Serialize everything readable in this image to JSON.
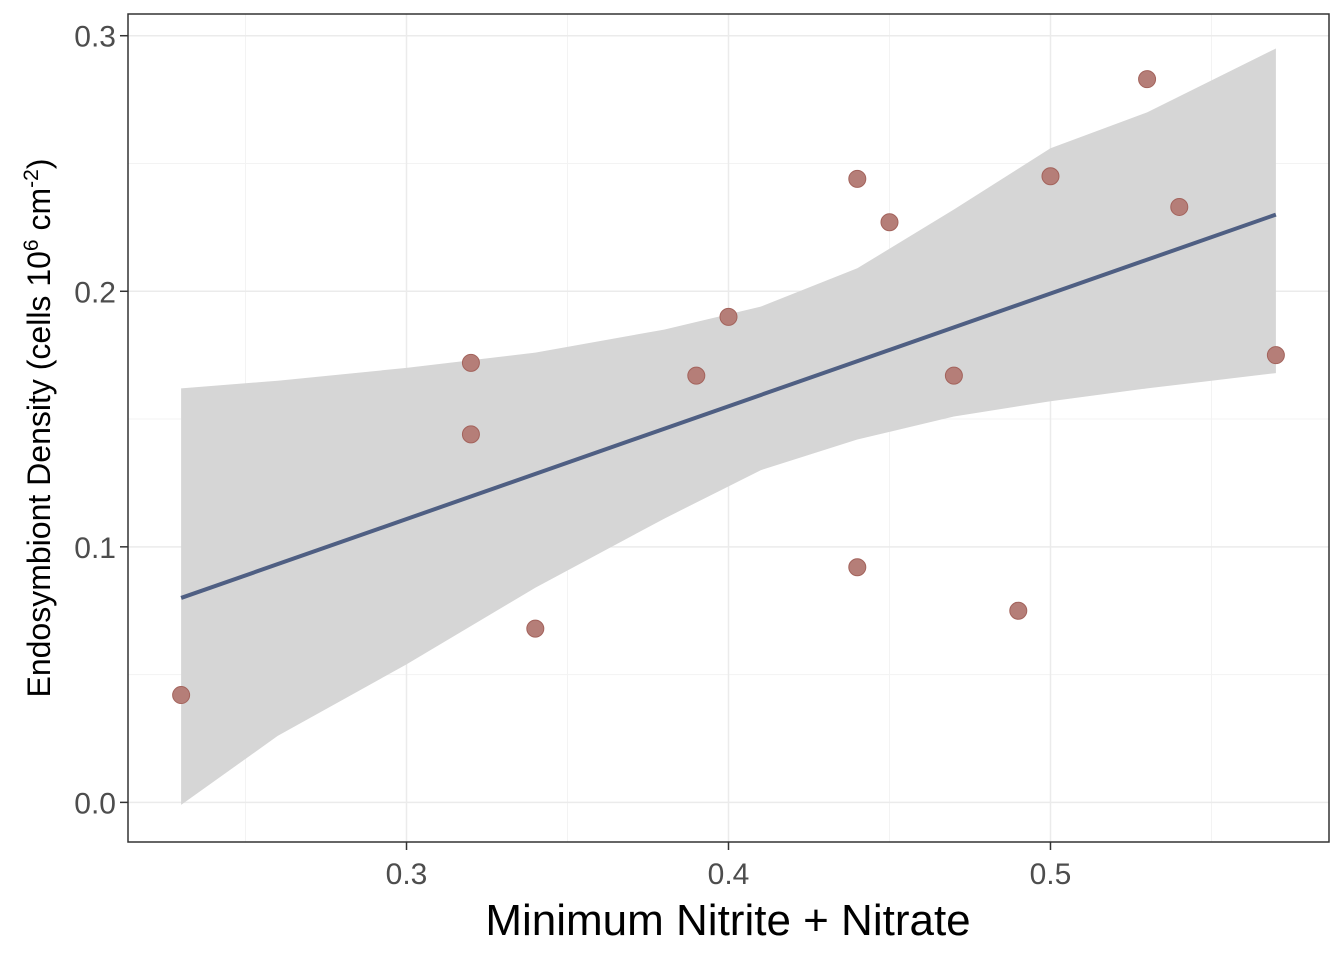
{
  "chart_data": {
    "type": "scatter",
    "title": "",
    "xlabel": "Minimum Nitrite + Nitrate",
    "ylabel": {
      "prefix": "Endosymbiont Density (cells 10",
      "sup1": "6",
      "mid": " cm",
      "sup2": "-2",
      "suffix": ")"
    },
    "xlim": [
      0.2135,
      0.5865
    ],
    "ylim": [
      -0.0155,
      0.3085
    ],
    "x_ticks": [
      0.3,
      0.4,
      0.5
    ],
    "x_tick_labels": [
      "0.3",
      "0.4",
      "0.5"
    ],
    "x_minor_ticks": [
      0.25,
      0.35,
      0.45,
      0.55
    ],
    "y_ticks": [
      0.0,
      0.1,
      0.2,
      0.3
    ],
    "y_tick_labels": [
      "0.0",
      "0.1",
      "0.2",
      "0.3"
    ],
    "y_minor_ticks": [
      0.05,
      0.15,
      0.25
    ],
    "grid": true,
    "points": {
      "x": [
        0.23,
        0.32,
        0.32,
        0.34,
        0.39,
        0.4,
        0.44,
        0.44,
        0.45,
        0.47,
        0.49,
        0.5,
        0.53,
        0.54,
        0.57
      ],
      "y": [
        0.042,
        0.172,
        0.144,
        0.068,
        0.167,
        0.19,
        0.244,
        0.092,
        0.227,
        0.167,
        0.075,
        0.245,
        0.283,
        0.233,
        0.175
      ]
    },
    "regression_line": {
      "x": [
        0.23,
        0.57
      ],
      "y": [
        0.08,
        0.23
      ]
    },
    "confidence_band": {
      "x": [
        0.23,
        0.26,
        0.3,
        0.34,
        0.38,
        0.41,
        0.44,
        0.47,
        0.5,
        0.53,
        0.57
      ],
      "lower": [
        -0.001,
        0.026,
        0.054,
        0.084,
        0.111,
        0.13,
        0.142,
        0.151,
        0.157,
        0.162,
        0.168
      ],
      "upper": [
        0.162,
        0.165,
        0.17,
        0.176,
        0.185,
        0.194,
        0.209,
        0.232,
        0.256,
        0.27,
        0.295
      ]
    },
    "colors": {
      "point_fill": "#b57e78",
      "point_stroke": "#a3635c",
      "line": "#4f5f83",
      "band": "#d6d6d6",
      "grid_major": "#ebebeb",
      "grid_minor": "#f3f3f3",
      "panel_border": "#333333",
      "tick": "#333333"
    }
  }
}
